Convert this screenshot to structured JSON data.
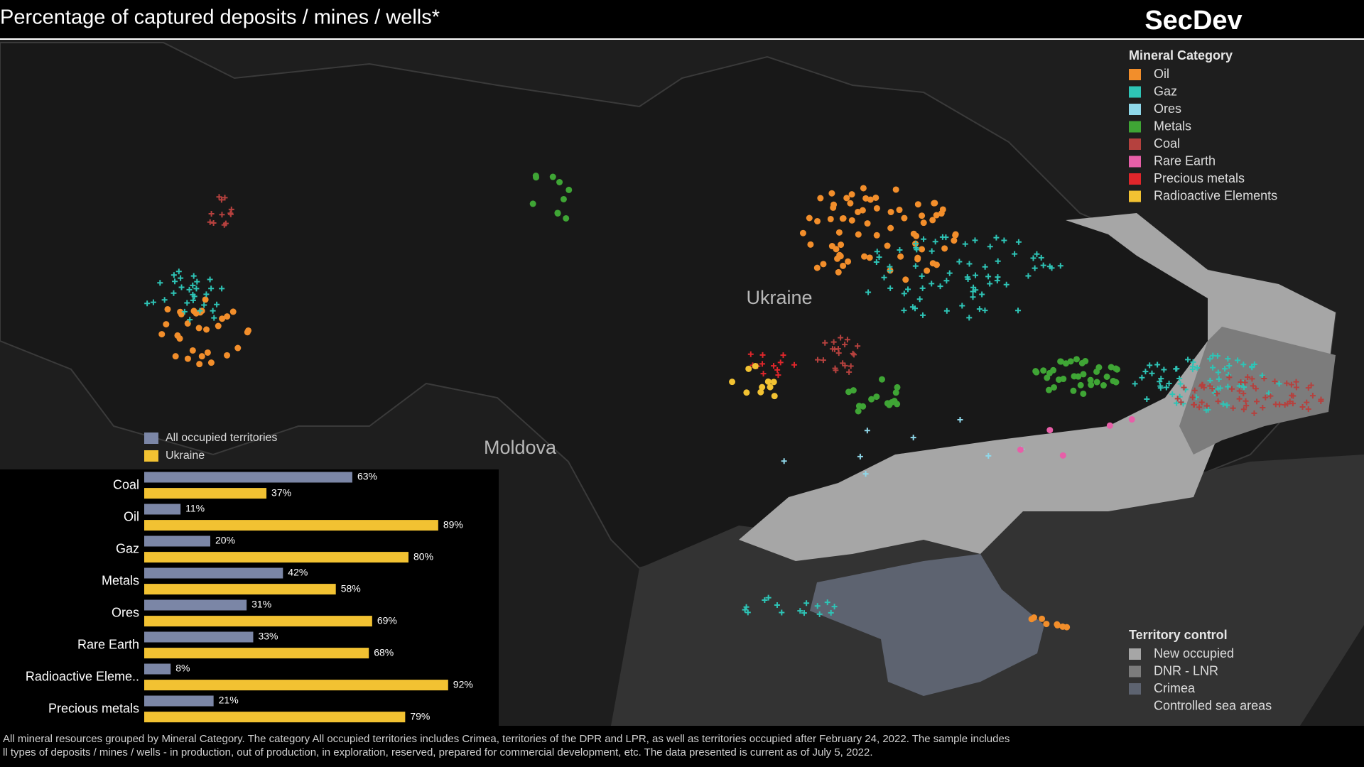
{
  "header": {
    "title": "Percentage of captured deposits / mines / wells*",
    "brand": "SecDev"
  },
  "map_labels": [
    "Ukraine",
    "Moldova"
  ],
  "mineral_legend": {
    "title": "Mineral Category",
    "items": [
      {
        "label": "Oil",
        "color": "#f28e2b"
      },
      {
        "label": "Gaz",
        "color": "#2ec4b6"
      },
      {
        "label": "Ores",
        "color": "#8fd8ea"
      },
      {
        "label": "Metals",
        "color": "#3fa535"
      },
      {
        "label": "Coal",
        "color": "#b5413e"
      },
      {
        "label": "Rare Earth",
        "color": "#e75fa8"
      },
      {
        "label": "Precious metals",
        "color": "#e0262b"
      },
      {
        "label": "Radioactive Elements",
        "color": "#f2c232"
      }
    ]
  },
  "territory_legend": {
    "title": "Territory control",
    "items": [
      {
        "label": "New occupied",
        "color": "#a6a6a6"
      },
      {
        "label": "DNR - LNR",
        "color": "#7c7c7c"
      },
      {
        "label": "Crimea",
        "color": "#5d6370"
      },
      {
        "label": "Controlled sea areas",
        "color": "#333333"
      }
    ]
  },
  "chart_data": {
    "type": "bar",
    "orientation": "horizontal",
    "categories": [
      "Coal",
      "Oil",
      "Gaz",
      "Metals",
      "Ores",
      "Rare Earth",
      "Radioactive Eleme..",
      "Precious metals"
    ],
    "series": [
      {
        "name": "All occupied territories",
        "color": "#7b86a6",
        "values": [
          63,
          11,
          20,
          42,
          31,
          33,
          8,
          21
        ],
        "value_labels": [
          "63%",
          "11%",
          "20%",
          "42%",
          "31%",
          "33%",
          "8%",
          "21%"
        ]
      },
      {
        "name": "Ukraine",
        "color": "#f2c232",
        "values": [
          37,
          89,
          80,
          58,
          69,
          68,
          92,
          79
        ],
        "value_labels": [
          "37%",
          "89%",
          "80%",
          "58%",
          "69%",
          "68%",
          "92%",
          "79%"
        ]
      }
    ],
    "xlim": [
      0,
      100
    ]
  },
  "footnote": [
    "All mineral resources grouped by Mineral Category. The category All occupied territories includes Crimea, territories of the DPR and LPR, as well as territories occupied after February 24, 2022. The sample includes",
    "ll types of deposits / mines / wells - in production, out of production, in exploration, reserved, prepared for commercial development, etc. The data presented is current as of July 5, 2022."
  ]
}
